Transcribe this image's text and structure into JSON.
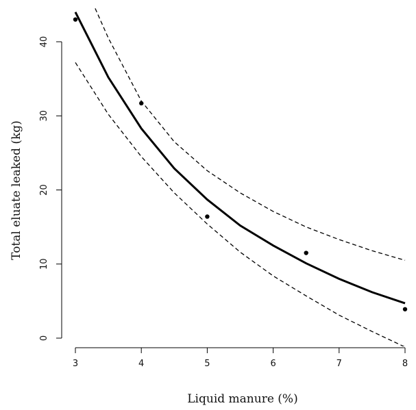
{
  "chart_data": {
    "type": "scatter",
    "title": "",
    "xlabel": "Liquid manure (%)",
    "ylabel": "Total eluate leaked (kg)",
    "xlim": [
      2.9,
      8.1
    ],
    "ylim": [
      -1.5,
      45
    ],
    "xticks": [
      3,
      4,
      5,
      6,
      7,
      8
    ],
    "yticks": [
      0,
      10,
      20,
      30,
      40
    ],
    "grid": false,
    "legend": "none",
    "points": [
      {
        "x": 3,
        "y": 43.0
      },
      {
        "x": 4,
        "y": 31.7
      },
      {
        "x": 5,
        "y": 16.4
      },
      {
        "x": 6.5,
        "y": 11.5
      },
      {
        "x": 8,
        "y": 3.9
      }
    ],
    "fit": {
      "style": "solid-thick",
      "x": [
        3.0,
        3.5,
        4.0,
        4.5,
        5.0,
        5.5,
        6.0,
        6.5,
        7.0,
        7.5,
        8.0
      ],
      "y": [
        44.0,
        35.2,
        28.3,
        22.9,
        18.7,
        15.2,
        12.5,
        10.1,
        8.0,
        6.2,
        4.7
      ]
    },
    "bands": [
      {
        "style": "dashed",
        "x": [
          3.3,
          3.5,
          4.0,
          4.5,
          5.0,
          5.5,
          6.0,
          6.5,
          7.0,
          7.5,
          8.0
        ],
        "y": [
          44.5,
          40.5,
          32.0,
          26.5,
          22.6,
          19.6,
          17.1,
          15.0,
          13.3,
          11.8,
          10.5
        ]
      },
      {
        "style": "dashed",
        "x": [
          3.0,
          3.5,
          4.0,
          4.5,
          5.0,
          5.5,
          6.0,
          6.5,
          7.0,
          7.5,
          8.0
        ],
        "y": [
          37.2,
          30.2,
          24.5,
          19.6,
          15.4,
          11.6,
          8.4,
          5.7,
          3.1,
          0.9,
          -1.2
        ]
      }
    ]
  }
}
